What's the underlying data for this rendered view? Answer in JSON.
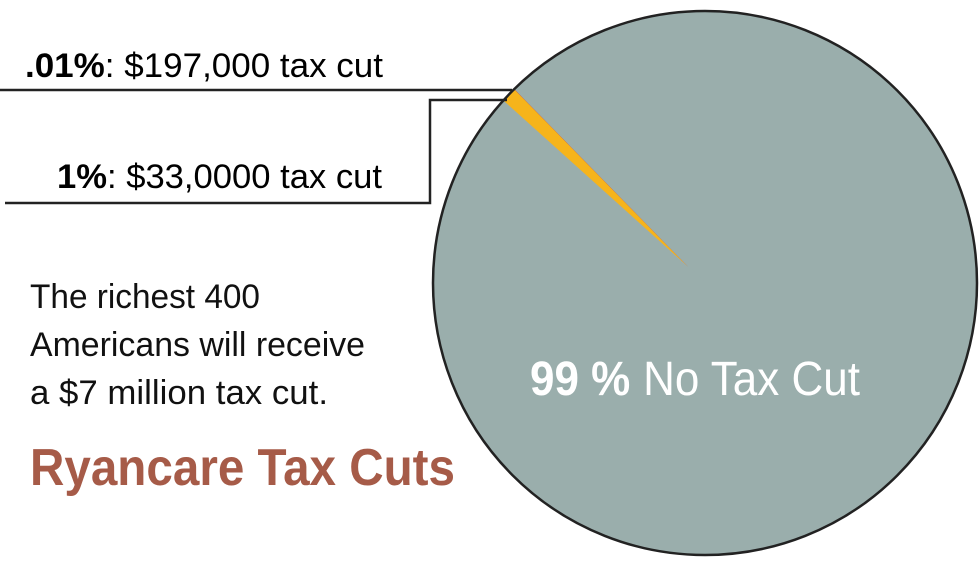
{
  "chart_data": {
    "type": "pie",
    "title": "Ryancare Tax Cuts",
    "annotation": [
      "The richest 400",
      "Americans will receive",
      "a $7 million tax cut."
    ],
    "categories": [
      ": $33,0000 tax cut",
      ": $197,000 tax cut",
      "No Tax Cut"
    ],
    "values": [
      1,
      0.01,
      99
    ],
    "value_labels": [
      "1%",
      ".01%",
      "99 %"
    ],
    "colors": [
      "#f6b41b",
      "#d8262b",
      "#9aaeac"
    ]
  }
}
